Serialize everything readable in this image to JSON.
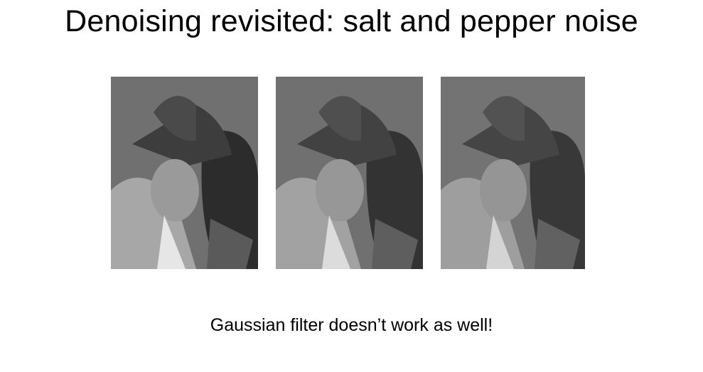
{
  "slide": {
    "title": "Denoising revisited: salt and pepper noise",
    "caption": "Gaussian filter doesn’t work as well!"
  },
  "figures": [
    {
      "kind": "photo",
      "subject": "portrait-woman-in-hat-salt-and-pepper-noise"
    },
    {
      "kind": "photo",
      "subject": "portrait-woman-in-hat-gaussian-filtered"
    },
    {
      "kind": "photo",
      "subject": "portrait-woman-in-hat-gaussian-filtered-stronger"
    }
  ],
  "colors": {
    "background": "#ffffff",
    "text": "#000000"
  }
}
